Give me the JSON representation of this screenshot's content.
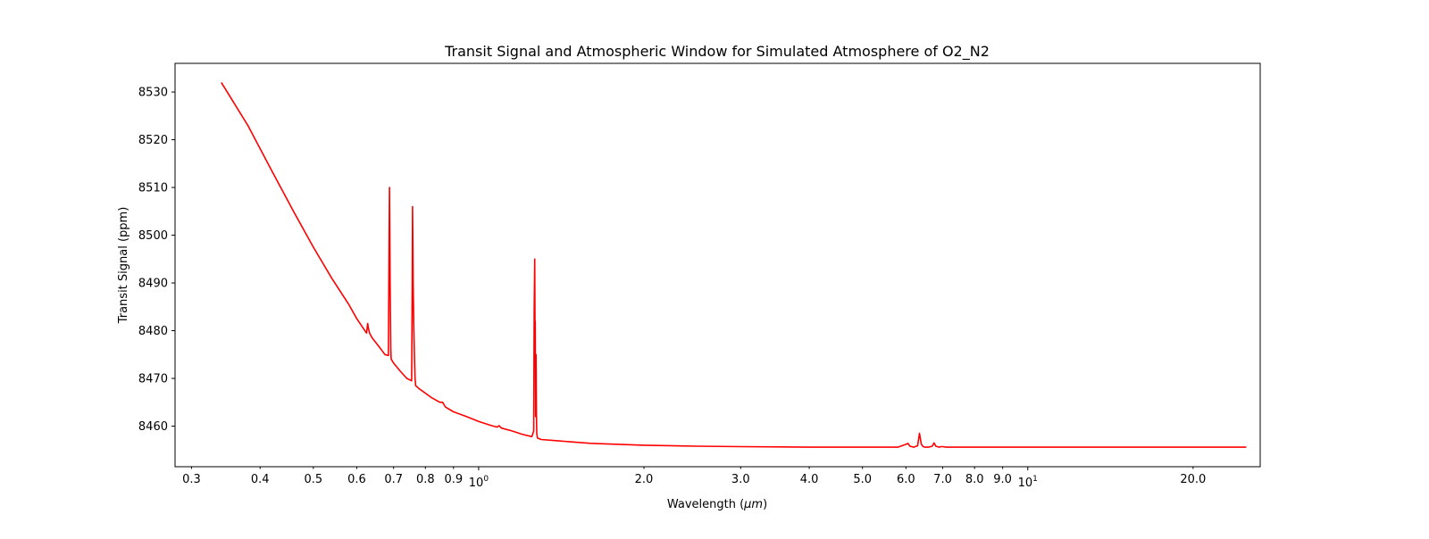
{
  "chart_data": {
    "type": "line",
    "title": "Transit Signal and Atmospheric Window for Simulated Atmosphere of O2_N2",
    "xlabel_main": "Wavelength (",
    "xlabel_unit": "μm",
    "xlabel_close": ")",
    "ylabel": "Transit Signal (ppm)",
    "xscale": "log",
    "xlim": [
      0.28,
      26.5
    ],
    "ylim": [
      8451.5,
      8536
    ],
    "grid": false,
    "legend": "none",
    "line_color": "#ff0000",
    "x_ticks": [
      {
        "value": 0.3,
        "label": "0.3"
      },
      {
        "value": 0.4,
        "label": "0.4"
      },
      {
        "value": 0.5,
        "label": "0.5"
      },
      {
        "value": 0.6,
        "label": "0.6"
      },
      {
        "value": 0.7,
        "label": "0.7"
      },
      {
        "value": 0.8,
        "label": "0.8"
      },
      {
        "value": 0.9,
        "label": "0.9"
      },
      {
        "value": 1.0,
        "label": "10",
        "exp": "0"
      },
      {
        "value": 2.0,
        "label": "2.0"
      },
      {
        "value": 3.0,
        "label": "3.0"
      },
      {
        "value": 4.0,
        "label": "4.0"
      },
      {
        "value": 5.0,
        "label": "5.0"
      },
      {
        "value": 6.0,
        "label": "6.0"
      },
      {
        "value": 7.0,
        "label": "7.0"
      },
      {
        "value": 8.0,
        "label": "8.0"
      },
      {
        "value": 9.0,
        "label": "9.0"
      },
      {
        "value": 10.0,
        "label": "10",
        "exp": "1"
      },
      {
        "value": 20.0,
        "label": "20.0"
      }
    ],
    "y_ticks": [
      {
        "value": 8460,
        "label": "8460"
      },
      {
        "value": 8470,
        "label": "8470"
      },
      {
        "value": 8480,
        "label": "8480"
      },
      {
        "value": 8490,
        "label": "8490"
      },
      {
        "value": 8500,
        "label": "8500"
      },
      {
        "value": 8510,
        "label": "8510"
      },
      {
        "value": 8520,
        "label": "8520"
      },
      {
        "value": 8530,
        "label": "8530"
      }
    ],
    "series": [
      {
        "x": [
          0.34,
          0.38,
          0.42,
          0.46,
          0.5,
          0.54,
          0.58,
          0.6,
          0.625,
          0.628,
          0.63,
          0.633,
          0.64,
          0.66,
          0.675,
          0.685,
          0.687,
          0.688,
          0.689,
          0.69,
          0.691,
          0.692,
          0.693,
          0.695,
          0.7,
          0.72,
          0.74,
          0.755,
          0.757,
          0.758,
          0.759,
          0.76,
          0.762,
          0.764,
          0.766,
          0.768,
          0.78,
          0.82,
          0.85,
          0.86,
          0.865,
          0.87,
          0.9,
          0.95,
          1.0,
          1.05,
          1.08,
          1.09,
          1.1,
          1.15,
          1.2,
          1.25,
          1.26,
          1.262,
          1.265,
          1.266,
          1.267,
          1.268,
          1.27,
          1.272,
          1.274,
          1.276,
          1.28,
          1.3,
          1.4,
          1.6,
          2.0,
          2.5,
          3.0,
          4.0,
          5.0,
          5.8,
          6.0,
          6.05,
          6.1,
          6.2,
          6.3,
          6.35,
          6.4,
          6.45,
          6.5,
          6.6,
          6.7,
          6.75,
          6.8,
          6.9,
          6.95,
          7.0,
          7.1,
          8.0,
          10.0,
          15.0,
          20.0,
          25.0
        ],
        "y": [
          8532,
          8523,
          8513.5,
          8505,
          8497.5,
          8491,
          8485.5,
          8482.5,
          8479.5,
          8481.5,
          8480.5,
          8479.5,
          8478.5,
          8476.5,
          8475,
          8474.8,
          8500,
          8510,
          8502,
          8490,
          8483,
          8476,
          8474,
          8473.8,
          8473.2,
          8471.5,
          8470,
          8469.5,
          8490,
          8506,
          8498,
          8490,
          8481,
          8475,
          8470,
          8468.5,
          8467.8,
          8466,
          8465,
          8465,
          8464.5,
          8464,
          8463,
          8462,
          8461,
          8460.2,
          8459.8,
          8460.1,
          8459.6,
          8459,
          8458.3,
          8457.8,
          8459,
          8484,
          8495,
          8487,
          8477,
          8482,
          8462,
          8475,
          8463,
          8458.5,
          8457.5,
          8457.2,
          8456.9,
          8456.4,
          8456,
          8455.8,
          8455.7,
          8455.6,
          8455.6,
          8455.6,
          8456.2,
          8456.4,
          8455.8,
          8455.6,
          8455.9,
          8458.5,
          8456.2,
          8455.7,
          8455.6,
          8455.6,
          8455.8,
          8456.5,
          8455.8,
          8455.6,
          8455.7,
          8455.7,
          8455.6,
          8455.6,
          8455.6,
          8455.6,
          8455.6,
          8455.6
        ]
      }
    ]
  }
}
